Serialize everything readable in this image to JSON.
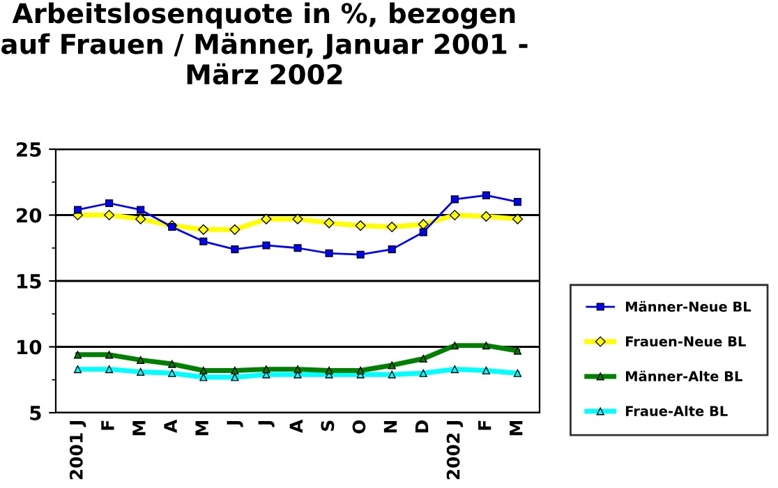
{
  "chart_data": {
    "type": "line",
    "title": "Arbeitslosenquote in %, bezogen auf Frauen / Männer, Januar 2001 - März 2002",
    "categories": [
      "2001 J",
      "F",
      "M",
      "A",
      "M",
      "J",
      "J",
      "A",
      "S",
      "O",
      "N",
      "D",
      "2002 J",
      "F",
      "M"
    ],
    "series": [
      {
        "name": "Männer-Neue BL",
        "color": "#0000ff",
        "marker": "square",
        "values": [
          20.4,
          20.9,
          20.4,
          19.1,
          18.0,
          17.4,
          17.7,
          17.5,
          17.1,
          17.0,
          17.4,
          18.7,
          21.2,
          21.5,
          21.0
        ]
      },
      {
        "name": "Frauen-Neue BL",
        "color": "#ffff00",
        "marker": "diamond",
        "values": [
          20.0,
          20.0,
          19.7,
          19.2,
          18.9,
          18.9,
          19.7,
          19.7,
          19.4,
          19.2,
          19.1,
          19.3,
          20.0,
          19.9,
          19.7
        ]
      },
      {
        "name": "Männer-Alte BL",
        "color": "#008000",
        "marker": "triangle",
        "values": [
          9.4,
          9.4,
          9.0,
          8.7,
          8.2,
          8.2,
          8.3,
          8.3,
          8.2,
          8.2,
          8.6,
          9.1,
          10.1,
          10.1,
          9.7
        ]
      },
      {
        "name": "Fraue-Alte BL",
        "color": "#00ffff",
        "marker": "triangle",
        "values": [
          8.3,
          8.3,
          8.1,
          8.0,
          7.7,
          7.7,
          7.9,
          7.9,
          7.9,
          7.9,
          7.9,
          8.0,
          8.3,
          8.2,
          8.0
        ]
      }
    ],
    "ylim": [
      5,
      25
    ],
    "yticks": [
      5,
      10,
      15,
      20,
      25
    ],
    "grid": "y",
    "legend": "right",
    "line_style": "solid"
  }
}
